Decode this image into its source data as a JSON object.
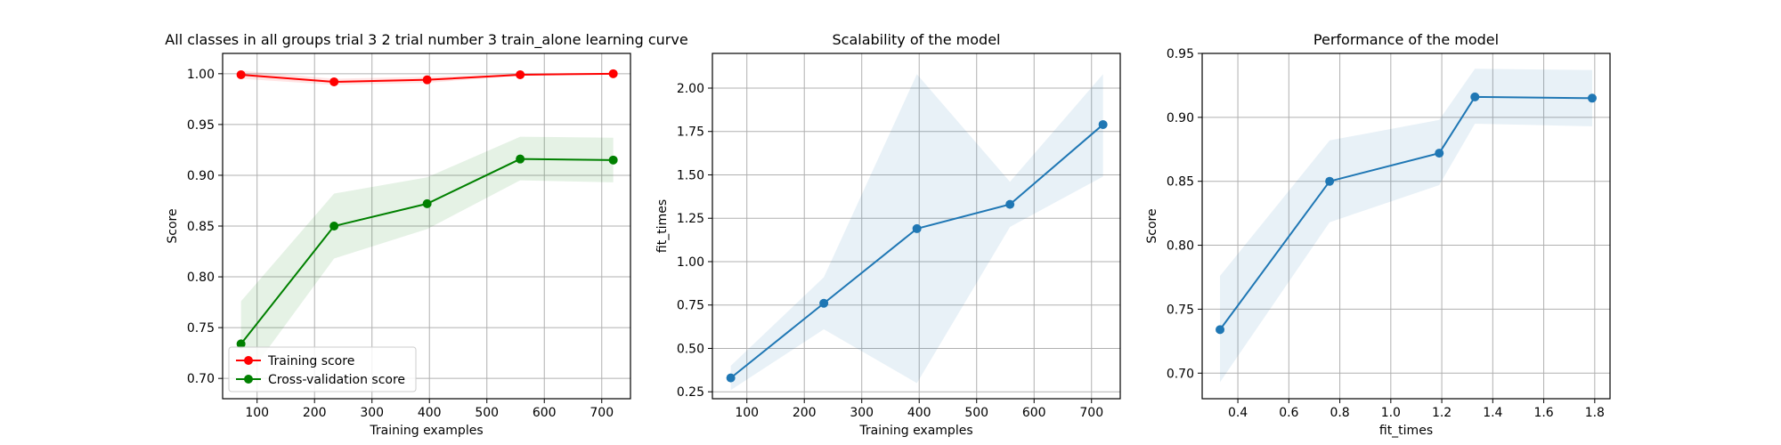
{
  "chart_data": [
    {
      "type": "line",
      "title": "All classes in all groups trial 3 2 trial number 3 train_alone learning curve",
      "xlabel": "Training examples",
      "ylabel": "Score",
      "xlim": [
        40,
        750
      ],
      "ylim": [
        0.68,
        1.02
      ],
      "xticks": [
        100,
        200,
        300,
        400,
        500,
        600,
        700
      ],
      "yticks": [
        0.7,
        0.75,
        0.8,
        0.85,
        0.9,
        0.95,
        1.0
      ],
      "ytick_decimals": 2,
      "grid": true,
      "legend": "lower-left",
      "series": [
        {
          "name": "Training score",
          "color": "#ff0000",
          "x": [
            72,
            234,
            396,
            558,
            720
          ],
          "values": [
            0.999,
            0.992,
            0.994,
            0.999,
            1.0
          ],
          "lower": [
            0.995,
            0.989,
            0.991,
            0.998,
            1.0
          ],
          "upper": [
            1.003,
            0.995,
            0.997,
            1.0,
            1.0
          ]
        },
        {
          "name": "Cross-validation score",
          "color": "#008000",
          "x": [
            72,
            234,
            396,
            558,
            720
          ],
          "values": [
            0.734,
            0.85,
            0.872,
            0.916,
            0.915
          ],
          "lower": [
            0.693,
            0.818,
            0.847,
            0.895,
            0.893
          ],
          "upper": [
            0.776,
            0.882,
            0.898,
            0.938,
            0.937
          ]
        }
      ]
    },
    {
      "type": "line",
      "title": "Scalability of the model",
      "xlabel": "Training examples",
      "ylabel": "fit_times",
      "xlim": [
        40,
        750
      ],
      "ylim": [
        0.21,
        2.2
      ],
      "xticks": [
        100,
        200,
        300,
        400,
        500,
        600,
        700
      ],
      "yticks": [
        0.25,
        0.5,
        0.75,
        1.0,
        1.25,
        1.5,
        1.75,
        2.0
      ],
      "ytick_decimals": 2,
      "grid": true,
      "series": [
        {
          "color": "#1f77b4",
          "x": [
            72,
            234,
            396,
            558,
            720
          ],
          "values": [
            0.33,
            0.76,
            1.19,
            1.33,
            1.79
          ],
          "lower": [
            0.26,
            0.61,
            0.3,
            1.2,
            1.49
          ],
          "upper": [
            0.4,
            0.91,
            2.08,
            1.46,
            2.08
          ]
        }
      ]
    },
    {
      "type": "line",
      "title": "Performance of the model",
      "xlabel": "fit_times",
      "ylabel": "Score",
      "xlim": [
        0.26,
        1.86
      ],
      "ylim": [
        0.68,
        0.95
      ],
      "xticks": [
        0.4,
        0.6,
        0.8,
        1.0,
        1.2,
        1.4,
        1.6,
        1.8
      ],
      "yticks": [
        0.7,
        0.75,
        0.8,
        0.85,
        0.9,
        0.95
      ],
      "xtick_decimals": 1,
      "ytick_decimals": 2,
      "grid": true,
      "series": [
        {
          "color": "#1f77b4",
          "x": [
            0.33,
            0.76,
            1.19,
            1.33,
            1.79
          ],
          "values": [
            0.734,
            0.85,
            0.872,
            0.916,
            0.915
          ],
          "lower": [
            0.693,
            0.818,
            0.847,
            0.895,
            0.893
          ],
          "upper": [
            0.776,
            0.882,
            0.898,
            0.938,
            0.937
          ]
        }
      ]
    }
  ]
}
